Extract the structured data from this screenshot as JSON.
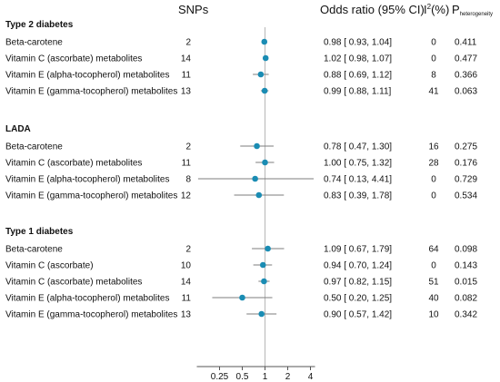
{
  "chart_data": {
    "type": "forest",
    "x_scale": "log2",
    "xlim": [
      0.125,
      4.6
    ],
    "reference_line": 1,
    "x_ticks": [
      "0.25",
      "0.5",
      "1",
      "2",
      "4"
    ],
    "point_color": "#1a8cb3",
    "headers": {
      "snps": "SNPs",
      "or": "Odds ratio (95% CI)",
      "i2_main": "I",
      "i2_sup": "2",
      "i2_rest": "(%)",
      "p_main": "P",
      "p_sub": "heterogeneity"
    },
    "groups": [
      {
        "title": "Type 2 diabetes",
        "rows": [
          {
            "label": "Beta-carotene",
            "snps": "2",
            "or": 0.98,
            "lo": 0.93,
            "hi": 1.04,
            "ci_text": "0.98 [ 0.93, 1.04]",
            "i2": "0",
            "p": "0.411"
          },
          {
            "label": "Vitamin C (ascorbate) metabolites",
            "snps": "14",
            "or": 1.02,
            "lo": 0.98,
            "hi": 1.07,
            "ci_text": "1.02 [ 0.98, 1.07]",
            "i2": "0",
            "p": "0.477"
          },
          {
            "label": "Vitamin E (alpha-tocopherol) metabolites",
            "snps": "11",
            "or": 0.88,
            "lo": 0.69,
            "hi": 1.12,
            "ci_text": "0.88 [ 0.69, 1.12]",
            "i2": "8",
            "p": "0.366"
          },
          {
            "label": "Vitamin E (gamma-tocopherol) metabolites",
            "snps": "13",
            "or": 0.99,
            "lo": 0.88,
            "hi": 1.11,
            "ci_text": "0.99 [ 0.88, 1.11]",
            "i2": "41",
            "p": "0.063"
          }
        ]
      },
      {
        "title": "LADA",
        "rows": [
          {
            "label": "Beta-carotene",
            "snps": "2",
            "or": 0.78,
            "lo": 0.47,
            "hi": 1.3,
            "ci_text": "0.78 [ 0.47, 1.30]",
            "i2": "16",
            "p": "0.275"
          },
          {
            "label": "Vitamin C (ascorbate) metabolites",
            "snps": "11",
            "or": 1.0,
            "lo": 0.75,
            "hi": 1.32,
            "ci_text": "1.00 [ 0.75, 1.32]",
            "i2": "28",
            "p": "0.176"
          },
          {
            "label": "Vitamin E (alpha-tocopherol) metabolites",
            "snps": "8",
            "or": 0.74,
            "lo": 0.13,
            "hi": 4.41,
            "ci_text": "0.74 [ 0.13, 4.41]",
            "i2": "0",
            "p": "0.729"
          },
          {
            "label": "Vitamin E (gamma-tocopherol) metabolites",
            "snps": "12",
            "or": 0.83,
            "lo": 0.39,
            "hi": 1.78,
            "ci_text": "0.83 [ 0.39, 1.78]",
            "i2": "0",
            "p": "0.534"
          }
        ]
      },
      {
        "title": "Type 1 diabetes",
        "rows": [
          {
            "label": "Beta-carotene",
            "snps": "2",
            "or": 1.09,
            "lo": 0.67,
            "hi": 1.79,
            "ci_text": "1.09 [ 0.67, 1.79]",
            "i2": "64",
            "p": "0.098"
          },
          {
            "label": "Vitamin C (ascorbate)",
            "snps": "10",
            "or": 0.94,
            "lo": 0.7,
            "hi": 1.24,
            "ci_text": "0.94 [ 0.70, 1.24]",
            "i2": "0",
            "p": "0.143"
          },
          {
            "label": "Vitamin C (ascorbate) metabolites",
            "snps": "14",
            "or": 0.97,
            "lo": 0.82,
            "hi": 1.15,
            "ci_text": "0.97 [ 0.82, 1.15]",
            "i2": "51",
            "p": "0.015"
          },
          {
            "label": "Vitamin E (alpha-tocopherol) metabolites",
            "snps": "11",
            "or": 0.5,
            "lo": 0.2,
            "hi": 1.25,
            "ci_text": "0.50 [ 0.20, 1.25]",
            "i2": "40",
            "p": "0.082"
          },
          {
            "label": "Vitamin E (gamma-tocopherol) metabolites",
            "snps": "13",
            "or": 0.9,
            "lo": 0.57,
            "hi": 1.42,
            "ci_text": "0.90 [ 0.57, 1.42]",
            "i2": "10",
            "p": "0.342"
          }
        ]
      }
    ]
  }
}
